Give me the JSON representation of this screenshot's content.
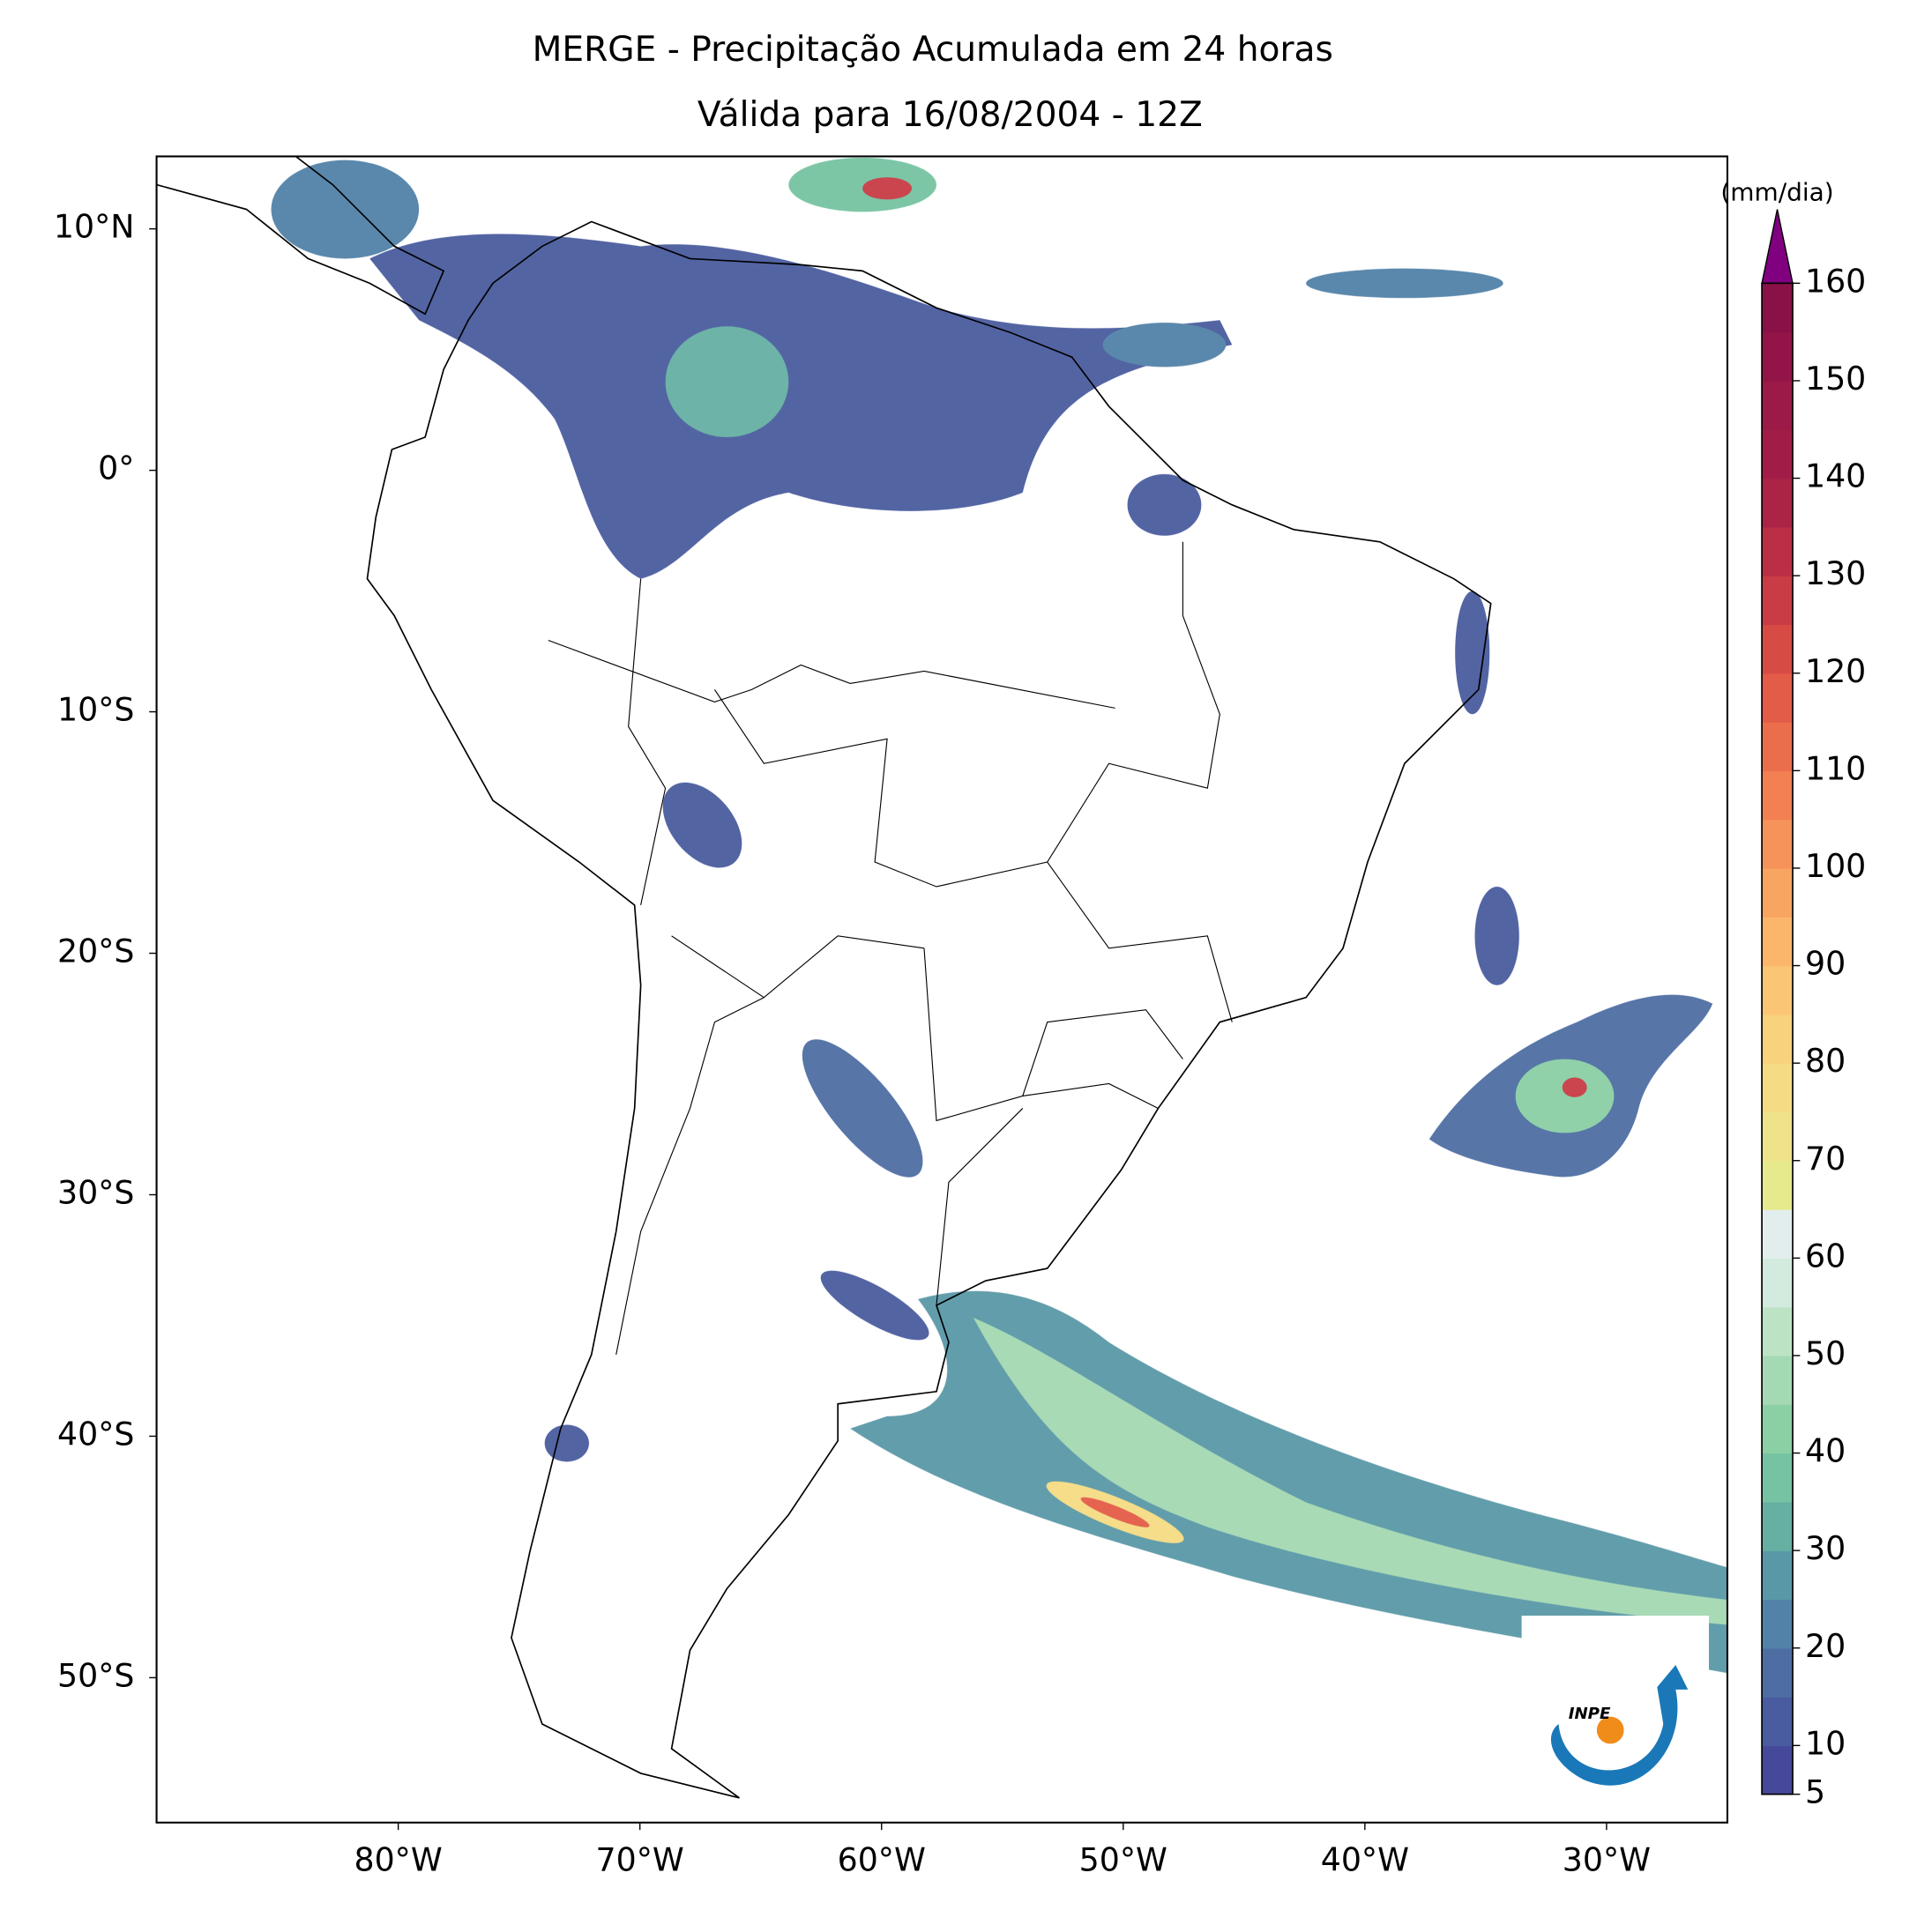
{
  "chart_data": {
    "type": "map",
    "title": "MERGE - Precipitação Acumulada em 24 horas",
    "subtitle": "Válida para 16/08/2004 - 12Z",
    "xlim": [
      -90,
      -25
    ],
    "ylim": [
      -56,
      13
    ],
    "xticks": [
      {
        "value": -80,
        "label": "80°W"
      },
      {
        "value": -70,
        "label": "70°W"
      },
      {
        "value": -60,
        "label": "60°W"
      },
      {
        "value": -50,
        "label": "50°W"
      },
      {
        "value": -40,
        "label": "40°W"
      },
      {
        "value": -30,
        "label": "30°W"
      }
    ],
    "yticks": [
      {
        "value": 10,
        "label": "10°N"
      },
      {
        "value": 0,
        "label": "0°"
      },
      {
        "value": -10,
        "label": "10°S"
      },
      {
        "value": -20,
        "label": "20°S"
      },
      {
        "value": -30,
        "label": "30°S"
      },
      {
        "value": -40,
        "label": "40°S"
      },
      {
        "value": -50,
        "label": "50°S"
      }
    ],
    "colorbar": {
      "label": "(mm/dia)",
      "clim": [
        5,
        160
      ],
      "ticks": [
        5,
        10,
        20,
        30,
        40,
        50,
        60,
        70,
        80,
        90,
        100,
        110,
        120,
        130,
        140,
        150,
        160
      ],
      "colors": [
        "#46489a",
        "#4a5c9f",
        "#4e6ea3",
        "#5282a8",
        "#5a98a7",
        "#66afa3",
        "#75c3a2",
        "#8bcfa5",
        "#a4d9b3",
        "#bde3c5",
        "#d2ebde",
        "#e2eeee",
        "#e6ea8c",
        "#eee38a",
        "#f5dc84",
        "#f8d27c",
        "#fac574",
        "#fbb66a",
        "#f9a562",
        "#f6935a",
        "#f28052",
        "#eb6e4c",
        "#e35c47",
        "#d74b45",
        "#c93c45",
        "#bb2f46",
        "#ab2447",
        "#a11d48",
        "#9b1a48",
        "#931548",
        "#8a1048"
      ],
      "extend_color": "#800080"
    },
    "logo_text": "INPE"
  }
}
